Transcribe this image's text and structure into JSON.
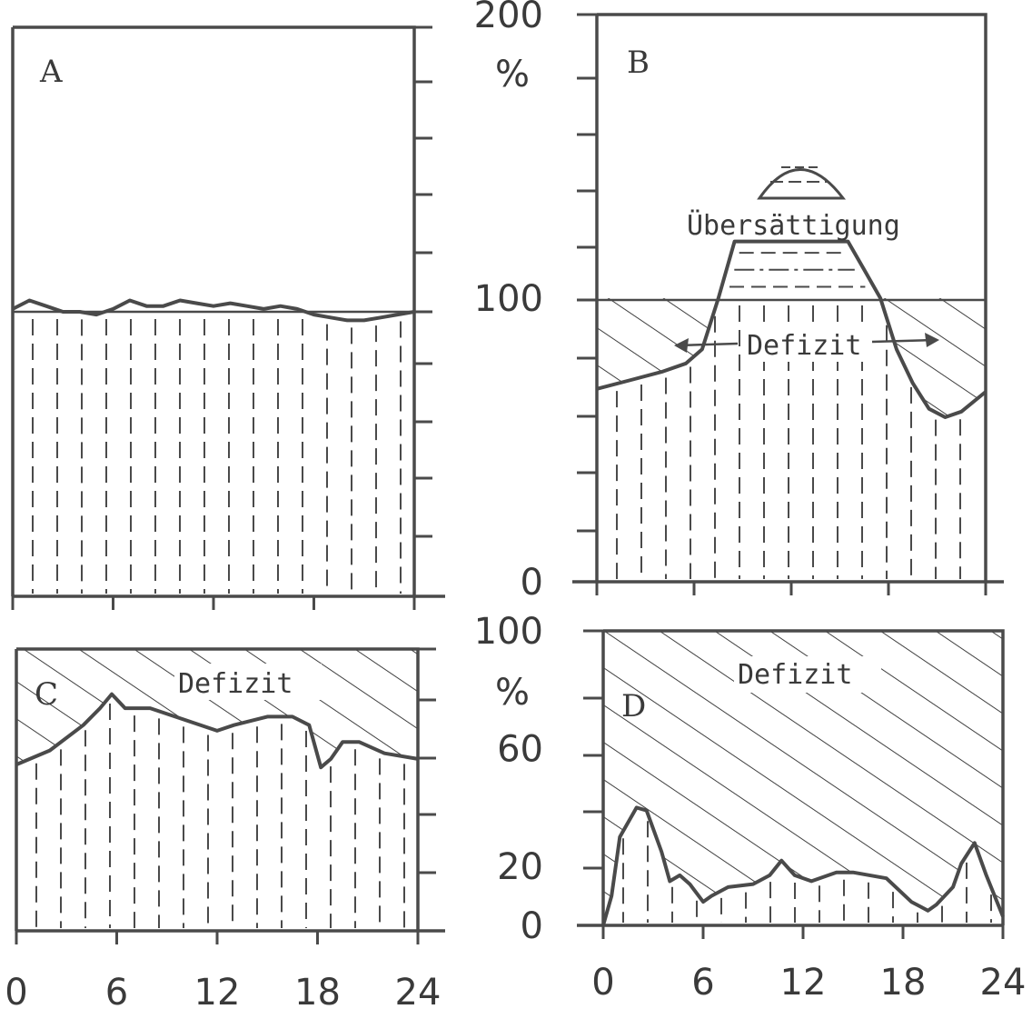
{
  "chart_data": [
    {
      "type": "area",
      "panel": "A",
      "title": "",
      "xlabel": "",
      "ylabel": "",
      "xlim": [
        0,
        24
      ],
      "ylim": [
        0,
        200
      ],
      "x_ticks": [
        "0",
        "6",
        "12",
        "18",
        "24"
      ],
      "y_ticks": [],
      "y_unit": "",
      "baseline": 100,
      "annotations": [],
      "series": [
        {
          "x": [
            0,
            1,
            2,
            3,
            4,
            5,
            6,
            7,
            8,
            9,
            10,
            11,
            12,
            13,
            14,
            15,
            16,
            17,
            18,
            19,
            20,
            21,
            22,
            23,
            24
          ],
          "y": [
            101,
            104,
            102,
            100,
            100,
            99,
            101,
            104,
            102,
            102,
            104,
            103,
            102,
            103,
            102,
            101,
            102,
            101,
            99,
            98,
            97,
            97,
            98,
            99,
            100
          ]
        }
      ]
    },
    {
      "type": "area",
      "panel": "B",
      "title": "",
      "xlabel": "",
      "ylabel": "",
      "xlim": [
        0,
        24
      ],
      "ylim": [
        0,
        200
      ],
      "x_ticks": [],
      "y_ticks": [
        "200",
        "100",
        "0"
      ],
      "y_unit": "%",
      "baseline": 100,
      "annotations": [
        "Übersättigung",
        "Defizit"
      ],
      "series": [
        {
          "x": [
            0,
            2,
            4,
            5.5,
            6.5,
            7.5,
            8.5,
            12,
            15.5,
            16.5,
            17.5,
            18.5,
            19.5,
            20.5,
            21.5,
            22.5,
            24
          ],
          "y": [
            68,
            71,
            74,
            77,
            82,
            100,
            120,
            120,
            120,
            110,
            100,
            82,
            70,
            61,
            58,
            60,
            67
          ]
        }
      ]
    },
    {
      "type": "area",
      "panel": "C",
      "title": "",
      "xlabel": "",
      "ylabel": "",
      "xlim": [
        0,
        24
      ],
      "ylim": [
        0,
        100
      ],
      "x_ticks": [
        "0",
        "6",
        "12",
        "18",
        "24"
      ],
      "y_ticks": [],
      "y_unit": "",
      "annotations": [
        "Defizit"
      ],
      "series": [
        {
          "x": [
            0,
            2,
            4,
            5,
            5.7,
            6.5,
            8,
            10,
            12,
            13,
            15,
            16.5,
            17.5,
            18.2,
            18.8,
            19.5,
            20.5,
            22,
            24
          ],
          "y": [
            59,
            64,
            73,
            79,
            84,
            79,
            79,
            75,
            71,
            73,
            76,
            76,
            73,
            58,
            61,
            67,
            67,
            63,
            61
          ]
        }
      ]
    },
    {
      "type": "area",
      "panel": "D",
      "title": "",
      "xlabel": "",
      "ylabel": "",
      "xlim": [
        0,
        24
      ],
      "ylim": [
        0,
        100
      ],
      "x_ticks": [
        "0",
        "6",
        "12",
        "18",
        "24"
      ],
      "y_ticks": [
        "100",
        "60",
        "20",
        "0"
      ],
      "y_unit": "%",
      "annotations": [
        "Defizit"
      ],
      "series": [
        {
          "x": [
            0,
            0.5,
            1,
            2,
            2.6,
            3.5,
            4,
            4.6,
            5.2,
            6,
            6.5,
            7.5,
            9,
            10,
            10.7,
            11.5,
            12.5,
            14,
            15,
            17,
            18.5,
            19.5,
            20,
            21,
            21.5,
            22.3,
            23,
            24
          ],
          "y": [
            0,
            10,
            30,
            40,
            39,
            25,
            15,
            17,
            14,
            8,
            10,
            13,
            14,
            17,
            22,
            17,
            15,
            18,
            18,
            16,
            8,
            5,
            7,
            13,
            21,
            28,
            17,
            3
          ]
        }
      ]
    }
  ]
}
